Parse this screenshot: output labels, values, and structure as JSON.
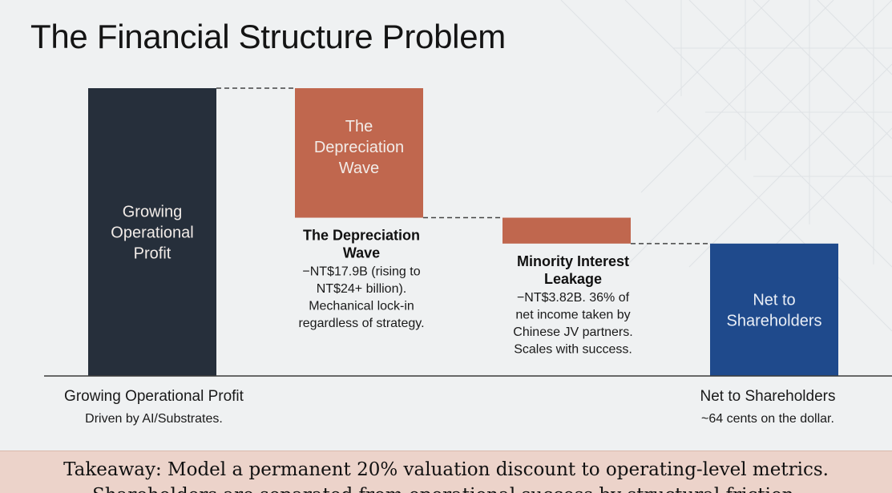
{
  "page": {
    "title": "The Financial Structure Problem"
  },
  "takeaway": {
    "line1": "Takeaway: Model a permanent 20% valuation discount to operating-level metrics.",
    "line2": "Shareholders are separated from operational success by structural friction."
  },
  "chart_data": {
    "type": "waterfall",
    "title": "The Financial Structure Problem",
    "steps": [
      {
        "name": "Growing Operational Profit",
        "kind": "total",
        "start": 0,
        "end": 100,
        "color": "#262f3b",
        "bar_text": [
          "Growing",
          "Operational",
          "Profit"
        ],
        "axis_label": "Growing Operational Profit",
        "axis_sublabel": "Driven by AI/Substrates."
      },
      {
        "name": "The Depreciation Wave",
        "kind": "decrease",
        "start": 100,
        "end": 55,
        "color": "#c0674e",
        "bar_text": [
          "The",
          "Depreciation",
          "Wave"
        ],
        "annotation_title": [
          "The Depreciation",
          "Wave"
        ],
        "annotation_body": [
          "−NT$17.9B (rising to",
          "NT$24+ billion).",
          "Mechanical lock-in",
          "regardless of strategy."
        ]
      },
      {
        "name": "Minority Interest Leakage",
        "kind": "decrease",
        "start": 55,
        "end": 46,
        "color": "#c0674e",
        "annotation_title": [
          "Minority Interest",
          "Leakage"
        ],
        "annotation_body": [
          "−NT$3.82B. 36% of",
          "net income taken by",
          "Chinese JV partners.",
          "Scales with success."
        ]
      },
      {
        "name": "Net to Shareholders",
        "kind": "total",
        "start": 0,
        "end": 46,
        "color": "#1f4a8c",
        "bar_text": [
          "Net to",
          "Shareholders"
        ],
        "axis_label": "Net to Shareholders",
        "axis_sublabel": "~64 cents on the dollar."
      }
    ],
    "ylim": [
      0,
      100
    ],
    "grid": false,
    "legend": "none"
  }
}
